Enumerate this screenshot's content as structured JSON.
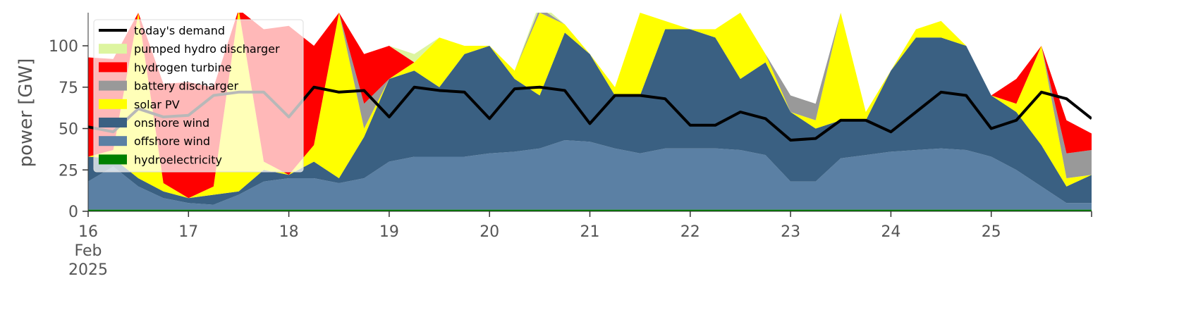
{
  "chart_data": {
    "type": "stacked-area",
    "ylabel": "power [GW]",
    "x": [
      16,
      16.25,
      16.5,
      16.75,
      17,
      17.25,
      17.5,
      17.75,
      18,
      18.25,
      18.5,
      18.75,
      19,
      19.25,
      19.5,
      19.75,
      20,
      20.25,
      20.5,
      20.75,
      21,
      21.25,
      21.5,
      21.75,
      22,
      22.25,
      22.5,
      22.75,
      23,
      23.25,
      23.5,
      23.75,
      24,
      24.25,
      24.5,
      24.75,
      25,
      25.25,
      25.5,
      25.75,
      26
    ],
    "xlim": [
      16,
      26
    ],
    "xticks": [
      {
        "value": 16,
        "label": "16\nFeb\n2025"
      },
      17,
      18,
      19,
      20,
      21,
      22,
      23,
      24,
      25
    ],
    "ylim": [
      0,
      120
    ],
    "yticks": [
      0,
      25,
      50,
      75,
      100
    ],
    "series": [
      {
        "name": "hydroelectricity",
        "color": "#008000",
        "values": [
          1,
          1,
          1,
          1,
          1,
          1,
          1,
          1,
          1,
          1,
          1,
          1,
          1,
          1,
          1,
          1,
          1,
          1,
          1,
          1,
          1,
          1,
          1,
          1,
          1,
          1,
          1,
          1,
          1,
          1,
          1,
          1,
          1,
          1,
          1,
          1,
          1,
          1,
          1,
          1,
          1
        ]
      },
      {
        "name": "offshore wind",
        "color": "#5b80a4",
        "values": [
          17,
          26,
          14,
          7,
          4,
          3,
          9,
          17,
          19,
          19,
          16,
          19,
          29,
          32,
          32,
          32,
          34,
          35,
          37,
          42,
          41,
          37,
          34,
          37,
          37,
          37,
          36,
          33,
          17,
          17,
          31,
          33,
          35,
          36,
          37,
          36,
          32,
          24,
          14,
          4,
          4
        ]
      },
      {
        "name": "onshore wind",
        "color": "#3a6082",
        "values": [
          15,
          5,
          5,
          4,
          3,
          6,
          2,
          7,
          2,
          10,
          3,
          25,
          50,
          52,
          42,
          62,
          65,
          44,
          32,
          65,
          53,
          32,
          35,
          72,
          72,
          67,
          43,
          56,
          42,
          32,
          23,
          21,
          49,
          68,
          67,
          63,
          37,
          35,
          25,
          10,
          17
        ]
      },
      {
        "name": "solar PV",
        "color": "#ffff00",
        "values": [
          0,
          5,
          100,
          5,
          0,
          5,
          110,
          5,
          0,
          10,
          100,
          5,
          0,
          5,
          30,
          5,
          0,
          5,
          50,
          5,
          0,
          5,
          50,
          5,
          0,
          5,
          40,
          5,
          0,
          5,
          65,
          5,
          0,
          5,
          10,
          0,
          0,
          5,
          60,
          5,
          0
        ]
      },
      {
        "name": "battery discharger",
        "color": "#999999",
        "values": [
          0,
          0,
          0,
          0,
          0,
          0,
          0,
          0,
          0,
          0,
          0,
          15,
          0,
          0,
          0,
          0,
          0,
          0,
          3,
          0,
          0,
          0,
          0,
          0,
          0,
          0,
          0,
          0,
          10,
          10,
          0,
          0,
          0,
          0,
          0,
          0,
          0,
          0,
          0,
          15,
          15
        ]
      },
      {
        "name": "hydrogen turbine",
        "color": "#ff0000",
        "values": [
          60,
          55,
          0,
          60,
          70,
          60,
          0,
          80,
          90,
          60,
          0,
          30,
          20,
          0,
          0,
          0,
          0,
          0,
          0,
          0,
          0,
          0,
          0,
          0,
          0,
          0,
          0,
          0,
          0,
          0,
          0,
          0,
          0,
          0,
          0,
          0,
          0,
          15,
          0,
          20,
          10
        ]
      },
      {
        "name": "pumped hydro discharger",
        "color": "#ddf5a0",
        "values": [
          0,
          0,
          0,
          0,
          0,
          0,
          0,
          0,
          0,
          0,
          0,
          0,
          0,
          5,
          0,
          0,
          0,
          0,
          3,
          0,
          0,
          0,
          0,
          0,
          0,
          0,
          0,
          0,
          0,
          0,
          0,
          0,
          0,
          0,
          0,
          0,
          0,
          0,
          0,
          0,
          0
        ]
      }
    ],
    "line": {
      "name": "today's demand",
      "color": "#000000",
      "values": [
        51,
        48,
        62,
        57,
        58,
        70,
        72,
        72,
        57,
        75,
        72,
        73,
        57,
        75,
        73,
        72,
        56,
        74,
        75,
        73,
        53,
        70,
        70,
        68,
        52,
        52,
        60,
        56,
        43,
        44,
        55,
        55,
        48,
        60,
        72,
        70,
        50,
        55,
        72,
        68,
        56
      ]
    }
  }
}
